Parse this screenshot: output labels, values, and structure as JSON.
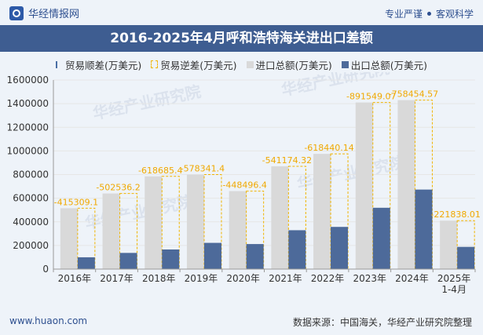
{
  "header": {
    "brand": "华经情报网",
    "tag_left": "专业严谨",
    "tag_right": "客观科学"
  },
  "title": "2016-2025年4月呼和浩特海关进出口差额",
  "legend": {
    "shun": "贸易顺差(万美元)",
    "ni": "贸易逆差(万美元)",
    "imp": "进口总额(万美元)",
    "exp": "出口总额(万美元)"
  },
  "colors": {
    "import": "#d9d9d9",
    "export": "#4d6a9a",
    "deficit_line": "#f0b400",
    "deficit_label": "#f0a800"
  },
  "footer": {
    "url": "www.huaon.com",
    "source": "数据来源：中国海关，华经产业研究院整理"
  },
  "watermark": "华经产业研究院",
  "chart_data": {
    "type": "bar",
    "categories": [
      "2016年",
      "2017年",
      "2018年",
      "2019年",
      "2020年",
      "2021年",
      "2022年",
      "2023年",
      "2024年",
      "2025年\n1-4月"
    ],
    "series": [
      {
        "name": "进口总额(万美元)",
        "values": [
          515000,
          640000,
          785000,
          800000,
          660000,
          870000,
          975000,
          1410000,
          1430000,
          410000
        ]
      },
      {
        "name": "出口总额(万美元)",
        "values": [
          100000,
          137000,
          166000,
          222000,
          212000,
          329000,
          357000,
          519000,
          673000,
          188000
        ]
      },
      {
        "name": "贸易逆差(万美元)",
        "values": [
          -415309.1,
          -502536.2,
          -618685.4,
          -578341.4,
          -448496.4,
          -541174.32,
          -618440.14,
          -891549.07,
          -758454.57,
          -221838.01
        ]
      }
    ],
    "deficit_labels": [
      "-415309.1",
      "-502536.2",
      "-618685.4",
      "-578341.4",
      "-448496.4",
      "-541174.32",
      "-618440.14",
      "-891549.07",
      "-758454.57",
      "-221838.01"
    ],
    "yticks": [
      "0",
      "200000",
      "400000",
      "600000",
      "800000",
      "1000000",
      "1200000",
      "1400000",
      "1600000"
    ],
    "ylim": [
      0,
      1600000
    ],
    "grid": true,
    "legend_position": "top"
  }
}
